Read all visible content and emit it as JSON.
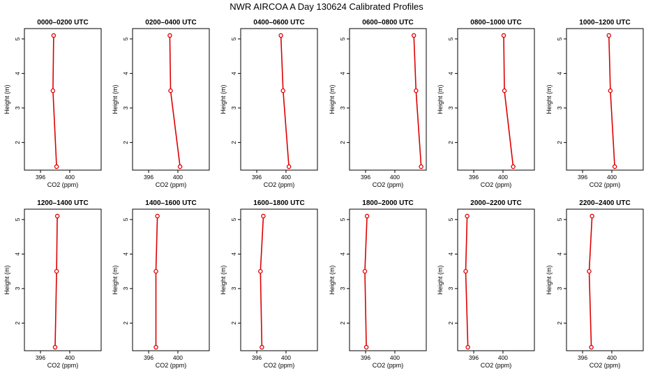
{
  "title": "NWR AIRCOA A  Day 130624  Calibrated Profiles",
  "colors": {
    "series": "#dd0000",
    "axis": "#000000"
  },
  "chart_data": [
    {
      "type": "line",
      "title": "0000–0200 UTC",
      "xlabel": "CO2 (ppm)",
      "ylabel": "Height (m)",
      "xlim": [
        393.8,
        404.3
      ],
      "ylim": [
        1.2,
        5.3
      ],
      "xticks": [
        396,
        400
      ],
      "yticks": [
        2,
        3,
        4,
        5
      ],
      "x": [
        397.8,
        397.7,
        398.2
      ],
      "y": [
        5.1,
        3.5,
        1.3
      ]
    },
    {
      "type": "line",
      "title": "0200–0400 UTC",
      "xlabel": "CO2 (ppm)",
      "ylabel": "Height (m)",
      "xlim": [
        393.8,
        404.3
      ],
      "ylim": [
        1.2,
        5.3
      ],
      "xticks": [
        396,
        400
      ],
      "yticks": [
        2,
        3,
        4,
        5
      ],
      "x": [
        398.9,
        399.0,
        400.3
      ],
      "y": [
        5.1,
        3.5,
        1.3
      ]
    },
    {
      "type": "line",
      "title": "0400–0600 UTC",
      "xlabel": "CO2 (ppm)",
      "ylabel": "Height (m)",
      "xlim": [
        393.8,
        404.3
      ],
      "ylim": [
        1.2,
        5.3
      ],
      "xticks": [
        396,
        400
      ],
      "yticks": [
        2,
        3,
        4,
        5
      ],
      "x": [
        399.3,
        399.6,
        400.4
      ],
      "y": [
        5.1,
        3.5,
        1.3
      ]
    },
    {
      "type": "line",
      "title": "0600–0800 UTC",
      "xlabel": "CO2 (ppm)",
      "ylabel": "Height (m)",
      "xlim": [
        393.8,
        404.3
      ],
      "ylim": [
        1.2,
        5.3
      ],
      "xticks": [
        396,
        400
      ],
      "yticks": [
        2,
        3,
        4,
        5
      ],
      "x": [
        402.6,
        402.9,
        403.6
      ],
      "y": [
        5.1,
        3.5,
        1.3
      ]
    },
    {
      "type": "line",
      "title": "0800–1000 UTC",
      "xlabel": "CO2 (ppm)",
      "ylabel": "Height (m)",
      "xlim": [
        393.8,
        404.3
      ],
      "ylim": [
        1.2,
        5.3
      ],
      "xticks": [
        396,
        400
      ],
      "yticks": [
        2,
        3,
        4,
        5
      ],
      "x": [
        400.1,
        400.2,
        401.4
      ],
      "y": [
        5.1,
        3.5,
        1.3
      ]
    },
    {
      "type": "line",
      "title": "1000–1200 UTC",
      "xlabel": "CO2 (ppm)",
      "ylabel": "Height (m)",
      "xlim": [
        393.8,
        404.3
      ],
      "ylim": [
        1.2,
        5.3
      ],
      "xticks": [
        396,
        400
      ],
      "yticks": [
        2,
        3,
        4,
        5
      ],
      "x": [
        399.6,
        399.8,
        400.4
      ],
      "y": [
        5.1,
        3.5,
        1.3
      ]
    },
    {
      "type": "line",
      "title": "1200–1400 UTC",
      "xlabel": "CO2 (ppm)",
      "ylabel": "Height (m)",
      "xlim": [
        393.8,
        404.3
      ],
      "ylim": [
        1.2,
        5.3
      ],
      "xticks": [
        396,
        400
      ],
      "yticks": [
        2,
        3,
        4,
        5
      ],
      "x": [
        398.3,
        398.2,
        398.0
      ],
      "y": [
        5.1,
        3.5,
        1.3
      ]
    },
    {
      "type": "line",
      "title": "1400–1600 UTC",
      "xlabel": "CO2 (ppm)",
      "ylabel": "Height (m)",
      "xlim": [
        393.8,
        404.3
      ],
      "ylim": [
        1.2,
        5.3
      ],
      "xticks": [
        396,
        400
      ],
      "yticks": [
        2,
        3,
        4,
        5
      ],
      "x": [
        397.2,
        397.0,
        397.0
      ],
      "y": [
        5.1,
        3.5,
        1.3
      ]
    },
    {
      "type": "line",
      "title": "1600–1800 UTC",
      "xlabel": "CO2 (ppm)",
      "ylabel": "Height (m)",
      "xlim": [
        393.8,
        404.3
      ],
      "ylim": [
        1.2,
        5.3
      ],
      "xticks": [
        396,
        400
      ],
      "yticks": [
        2,
        3,
        4,
        5
      ],
      "x": [
        396.9,
        396.5,
        396.7
      ],
      "y": [
        5.1,
        3.5,
        1.3
      ]
    },
    {
      "type": "line",
      "title": "1800–2000 UTC",
      "xlabel": "CO2 (ppm)",
      "ylabel": "Height (m)",
      "xlim": [
        393.8,
        404.3
      ],
      "ylim": [
        1.2,
        5.3
      ],
      "xticks": [
        396,
        400
      ],
      "yticks": [
        2,
        3,
        4,
        5
      ],
      "x": [
        396.2,
        395.9,
        396.1
      ],
      "y": [
        5.1,
        3.5,
        1.3
      ]
    },
    {
      "type": "line",
      "title": "2000–2200 UTC",
      "xlabel": "CO2 (ppm)",
      "ylabel": "Height (m)",
      "xlim": [
        393.8,
        404.3
      ],
      "ylim": [
        1.2,
        5.3
      ],
      "xticks": [
        396,
        400
      ],
      "yticks": [
        2,
        3,
        4,
        5
      ],
      "x": [
        395.1,
        394.9,
        395.2
      ],
      "y": [
        5.1,
        3.5,
        1.3
      ]
    },
    {
      "type": "line",
      "title": "2200–2400 UTC",
      "xlabel": "CO2 (ppm)",
      "ylabel": "Height (m)",
      "xlim": [
        393.8,
        404.3
      ],
      "ylim": [
        1.2,
        5.3
      ],
      "xticks": [
        396,
        400
      ],
      "yticks": [
        2,
        3,
        4,
        5
      ],
      "x": [
        397.3,
        396.9,
        397.2
      ],
      "y": [
        5.1,
        3.5,
        1.3
      ]
    }
  ]
}
